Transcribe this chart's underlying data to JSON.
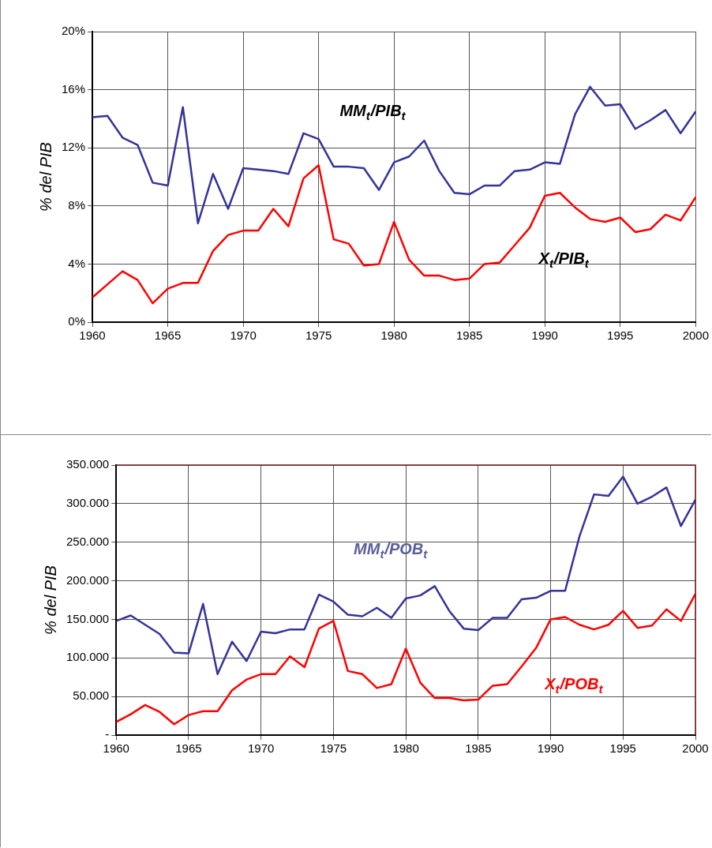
{
  "chart_data": [
    {
      "type": "line",
      "ylabel": "% del PIB",
      "x": [
        1960,
        1961,
        1962,
        1963,
        1964,
        1965,
        1966,
        1967,
        1968,
        1969,
        1970,
        1971,
        1972,
        1973,
        1974,
        1975,
        1976,
        1977,
        1978,
        1979,
        1980,
        1981,
        1982,
        1983,
        1984,
        1985,
        1986,
        1987,
        1988,
        1989,
        1990,
        1991,
        1992,
        1993,
        1994,
        1995,
        1996,
        1997,
        1998,
        1999,
        2000
      ],
      "series": [
        {
          "name": "MM$_{t}$/PIB$_{t}$",
          "color": "#333399",
          "values": [
            14.1,
            14.2,
            12.7,
            12.2,
            9.6,
            9.4,
            14.8,
            6.8,
            10.2,
            7.8,
            10.6,
            10.5,
            10.4,
            10.2,
            13.0,
            12.6,
            10.7,
            10.7,
            10.6,
            9.1,
            11.0,
            11.4,
            12.5,
            10.4,
            8.9,
            8.8,
            9.4,
            9.4,
            10.4,
            10.5,
            11.0,
            10.9,
            14.3,
            16.2,
            14.9,
            15.0,
            13.3,
            13.9,
            14.6,
            13.0,
            14.5
          ]
        },
        {
          "name": "X$_{t}$/PIB$_{t}$",
          "color": "#ff0000",
          "values": [
            1.7,
            2.6,
            3.5,
            2.9,
            1.3,
            2.3,
            2.7,
            2.7,
            4.9,
            6.0,
            6.3,
            6.3,
            7.8,
            6.6,
            9.9,
            10.8,
            5.7,
            5.4,
            3.9,
            4.0,
            6.9,
            4.3,
            3.2,
            3.2,
            2.9,
            3.0,
            4.0,
            4.1,
            5.3,
            6.5,
            8.7,
            8.9,
            7.9,
            7.1,
            6.9,
            7.2,
            6.2,
            6.4,
            7.4,
            7.0,
            8.6
          ]
        }
      ],
      "xlim": [
        1960,
        2000
      ],
      "xticks": [
        1960,
        1965,
        1970,
        1975,
        1980,
        1985,
        1990,
        1995,
        2000
      ],
      "ylim": [
        0,
        20
      ],
      "yticks": [
        {
          "value": 0,
          "label": "0%"
        },
        {
          "value": 4,
          "label": "4%"
        },
        {
          "value": 8,
          "label": "8%"
        },
        {
          "value": 12,
          "label": "12%"
        },
        {
          "value": 16,
          "label": "16%"
        },
        {
          "value": 20,
          "label": "20%"
        }
      ],
      "grid": true,
      "legend": false,
      "marker": "none",
      "line_style": "solid"
    },
    {
      "type": "line",
      "ylabel": "% del PIB",
      "x": [
        1960,
        1961,
        1962,
        1963,
        1964,
        1965,
        1966,
        1967,
        1968,
        1969,
        1970,
        1971,
        1972,
        1973,
        1974,
        1975,
        1976,
        1977,
        1978,
        1979,
        1980,
        1981,
        1982,
        1983,
        1984,
        1985,
        1986,
        1987,
        1988,
        1989,
        1990,
        1991,
        1992,
        1993,
        1994,
        1995,
        1996,
        1997,
        1998,
        1999,
        2000
      ],
      "series": [
        {
          "name": "MM$_{t}$/POB$_{t}$",
          "color": "#333399",
          "values": [
            148000,
            155000,
            143000,
            131000,
            107000,
            106000,
            170000,
            79000,
            121000,
            96000,
            134000,
            132000,
            137000,
            137000,
            182000,
            173000,
            156000,
            154000,
            165000,
            152000,
            177000,
            181000,
            193000,
            161000,
            138000,
            136000,
            152000,
            152000,
            176000,
            178000,
            187000,
            187000,
            258000,
            312000,
            310000,
            335000,
            300000,
            309000,
            321000,
            271000,
            305000
          ]
        },
        {
          "name": "X$_{t}$/POB$_{t}$",
          "color": "#ff0000",
          "values": [
            17000,
            27000,
            39000,
            30000,
            14000,
            26000,
            31000,
            31000,
            58000,
            72000,
            79000,
            79000,
            102000,
            88000,
            138000,
            148000,
            83000,
            79000,
            61000,
            66000,
            112000,
            68000,
            48000,
            48000,
            45000,
            46000,
            64000,
            66000,
            89000,
            113000,
            150000,
            153000,
            143000,
            137000,
            143000,
            161000,
            139000,
            142000,
            163000,
            148000,
            183000
          ]
        }
      ],
      "xlim": [
        1960,
        2000
      ],
      "xticks": [
        1960,
        1965,
        1970,
        1975,
        1980,
        1985,
        1990,
        1995,
        2000
      ],
      "ylim": [
        0,
        350000
      ],
      "yticks": [
        {
          "value": 0,
          "label": "-"
        },
        {
          "value": 50000,
          "label": "50.000"
        },
        {
          "value": 100000,
          "label": "100.000"
        },
        {
          "value": 150000,
          "label": "150.000"
        },
        {
          "value": 200000,
          "label": "200.000"
        },
        {
          "value": 250000,
          "label": "250.000"
        },
        {
          "value": 300000,
          "label": "300.000"
        },
        {
          "value": 350000,
          "label": "350.000"
        }
      ],
      "grid": true,
      "legend": false,
      "marker": "none",
      "line_style": "solid"
    }
  ]
}
